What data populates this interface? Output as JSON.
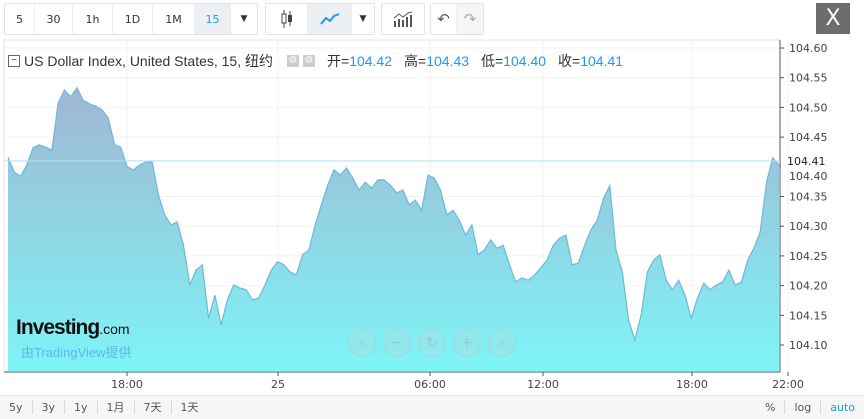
{
  "toolbar": {
    "intervals": [
      "5",
      "30",
      "1h",
      "1D",
      "1M",
      "15"
    ],
    "active_interval": "15",
    "close_label": "X",
    "icons": [
      "candlestick-icon",
      "line-chart-icon",
      "chevron-down-icon",
      "indicators-icon",
      "undo-icon",
      "redo-icon"
    ]
  },
  "legend": {
    "title": "US Dollar Index, United States, 15, 纽约",
    "open_label": "开=",
    "open": "104.42",
    "high_label": "高=",
    "high": "104.43",
    "low_label": "低=",
    "low": "104.40",
    "close_label": "收=",
    "close": "104.41"
  },
  "branding": {
    "logo": "Investing",
    "logo_suffix": ".com",
    "provider": "由TradingView提供"
  },
  "bottom": {
    "ranges": [
      "5y",
      "3y",
      "1y",
      "1月",
      "7天",
      "1天"
    ],
    "percent": "%",
    "log": "log",
    "auto": "auto"
  },
  "colors": {
    "accent": "#2196f3",
    "line": "#6fb8d8",
    "fill_top": "#9fb8d4",
    "fill_bottom": "#7ef4f6"
  },
  "chart_data": {
    "type": "area",
    "ylim": [
      104.05,
      104.62
    ],
    "yticks": [
      "104.60",
      "104.55",
      "104.50",
      "104.45",
      "104.40",
      "104.35",
      "104.30",
      "104.25",
      "104.20",
      "104.15",
      "104.10"
    ],
    "xticks": [
      "18:00",
      "25",
      "06:00",
      "12:00",
      "18:00",
      "22:00"
    ],
    "last_price": "104.41",
    "values": [
      104.416,
      104.391,
      104.384,
      104.403,
      104.432,
      104.437,
      104.433,
      104.428,
      104.507,
      104.529,
      104.518,
      104.533,
      104.512,
      104.506,
      104.502,
      104.496,
      104.482,
      104.437,
      104.433,
      104.4,
      104.395,
      104.403,
      104.408,
      104.408,
      104.353,
      104.319,
      104.302,
      104.307,
      104.268,
      104.201,
      104.226,
      104.235,
      104.145,
      104.184,
      104.134,
      104.176,
      104.201,
      104.196,
      104.193,
      104.176,
      104.179,
      104.201,
      104.226,
      104.24,
      104.235,
      104.223,
      104.218,
      104.252,
      104.26,
      104.302,
      104.336,
      104.369,
      104.395,
      104.386,
      104.398,
      104.381,
      104.361,
      104.374,
      104.364,
      104.378,
      104.378,
      104.369,
      104.356,
      104.361,
      104.336,
      104.344,
      104.327,
      104.386,
      104.381,
      104.361,
      104.319,
      104.327,
      104.31,
      104.285,
      104.302,
      104.252,
      104.26,
      104.277,
      104.263,
      104.268,
      104.235,
      104.206,
      104.213,
      104.209,
      104.218,
      104.23,
      104.243,
      104.268,
      104.28,
      104.285,
      104.235,
      104.238,
      104.268,
      104.294,
      104.31,
      104.347,
      104.368,
      104.26,
      104.223,
      104.142,
      104.108,
      104.15,
      104.223,
      104.243,
      104.252,
      104.209,
      104.193,
      104.209,
      104.184,
      104.145,
      104.179,
      104.204,
      104.193,
      104.201,
      104.206,
      104.226,
      104.201,
      104.206,
      104.243,
      104.263,
      104.29,
      104.374,
      104.415,
      104.403
    ]
  }
}
